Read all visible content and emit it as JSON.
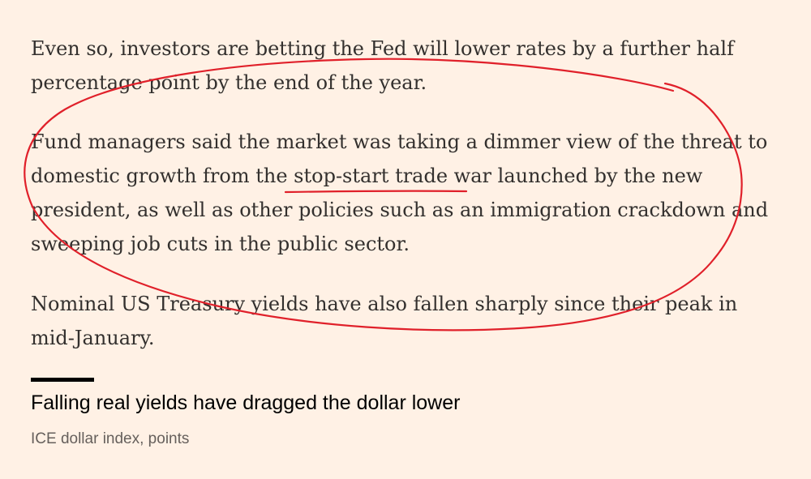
{
  "article": {
    "paragraphs": [
      "Even so, investors are betting the Fed will lower rates by a further half percentage point by the end of the year.",
      "Fund managers said the market was taking a dimmer view of the threat to domestic growth from the stop-start trade war launched by the new president, as well as other policies such as an immigration crackdown and sweeping job cuts in the public sector.",
      "Nominal US Treasury yields have also fallen sharply since their peak in mid-January."
    ],
    "highlighted_phrase": "stop-start trade war"
  },
  "chart_header": {
    "title": "Falling real yields have dragged the dollar lower",
    "subtitle": "ICE dollar index, points"
  },
  "annotation": {
    "color": "#e0202a",
    "shape": "freehand-ellipse"
  }
}
